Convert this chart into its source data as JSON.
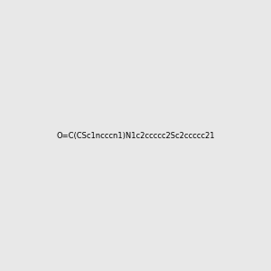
{
  "smiles": "O=C(CSc1ncccn1)N1c2ccccc2Sc2ccccc21",
  "image_size": 300,
  "background_color": "#e8e8e8",
  "bond_color": "#000000",
  "atom_colors": {
    "N": "#0000ff",
    "O": "#ff0000",
    "S": "#ddaa00"
  }
}
